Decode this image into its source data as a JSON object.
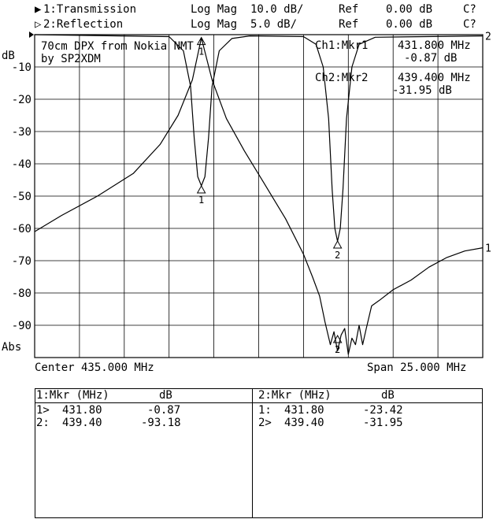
{
  "header": {
    "line1": {
      "marker": "▶",
      "label": "1:Transmission",
      "format": "Log Mag",
      "scale": "10.0 dB/",
      "ref_label": "Ref",
      "ref_value": "0.00 dB",
      "flag": "C?"
    },
    "line2": {
      "marker": "▷",
      "label": "2:Reflection",
      "format": "Log Mag",
      "scale": "5.0 dB/",
      "ref_label": "Ref",
      "ref_value": "0.00 dB",
      "flag": "C?"
    }
  },
  "annotation": {
    "line1": "70cm DPX from Nokia NMT",
    "line2": "by SP2XDM"
  },
  "marker_readouts": [
    {
      "title": "Ch1:Mkr1",
      "freq": "431.800 MHz",
      "value": "-0.87 dB"
    },
    {
      "title": "Ch2:Mkr2",
      "freq": "439.400 MHz",
      "value": "-31.95 dB"
    }
  ],
  "axis": {
    "unit": "dB",
    "mode": "Abs",
    "center": "Center 435.000 MHz",
    "span": "Span 25.000 MHz"
  },
  "chart_data": {
    "type": "line",
    "xlabel": "",
    "ylabel": "dB",
    "x_unit": "MHz",
    "xlim": [
      422.5,
      447.5
    ],
    "ylim": [
      -100,
      0
    ],
    "y_ticks": [
      -10,
      -20,
      -30,
      -40,
      -50,
      -60,
      -70,
      -80,
      -90
    ],
    "y_tick_labels": [
      "-10",
      "-20",
      "-30",
      "-40",
      "-50",
      "-60",
      "-70",
      "-80",
      "-90"
    ],
    "grid": true,
    "series": [
      {
        "name": "1",
        "trace": "Transmission",
        "scale_db_per_div": 10,
        "x": [
          422.5,
          424.0,
          426.0,
          428.0,
          429.5,
          430.5,
          431.3,
          431.8,
          432.4,
          433.2,
          434.2,
          435.3,
          436.5,
          437.5,
          438.0,
          438.4,
          438.7,
          439.0,
          439.2,
          439.4,
          439.6,
          439.8,
          440.0,
          440.2,
          440.4,
          440.6,
          440.8,
          441.0,
          441.3,
          441.8,
          442.5,
          443.5,
          444.5,
          445.5,
          446.5,
          447.5
        ],
        "y": [
          -61,
          -56,
          -50,
          -43,
          -34,
          -25,
          -14,
          -1,
          -14,
          -26,
          -36,
          -46,
          -57,
          -68,
          -75,
          -81,
          -89,
          -96,
          -92,
          -98,
          -93,
          -91,
          -99,
          -94,
          -96,
          -90,
          -96,
          -91,
          -84,
          -82,
          -79,
          -76,
          -72,
          -69,
          -67,
          -66
        ]
      },
      {
        "name": "2",
        "trace": "Reflection",
        "scale_db_per_div": 5,
        "x": [
          422.5,
          430.0,
          430.8,
          431.2,
          431.4,
          431.6,
          431.8,
          432.0,
          432.2,
          432.4,
          432.8,
          433.5,
          434.5,
          437.5,
          438.2,
          438.6,
          438.9,
          439.1,
          439.25,
          439.4,
          439.55,
          439.7,
          439.9,
          440.2,
          440.6,
          441.5,
          447.5
        ],
        "y": [
          0,
          -0.3,
          -2.5,
          -8,
          -16,
          -22,
          -23.4,
          -22,
          -16,
          -8,
          -2.5,
          -0.6,
          -0.2,
          -0.3,
          -1.5,
          -5,
          -13,
          -24,
          -30,
          -32,
          -30,
          -24,
          -13,
          -5,
          -1.5,
          -0.4,
          -0.2
        ]
      }
    ],
    "markers": [
      {
        "label": "1",
        "series": "1",
        "x": 431.8,
        "y": -0.87
      },
      {
        "label": "2",
        "series": "1",
        "x": 439.4,
        "y": -93.18
      },
      {
        "label": "1",
        "series": "2",
        "x": 431.8,
        "y": -23.42
      },
      {
        "label": "2",
        "series": "2",
        "x": 439.4,
        "y": -31.95
      }
    ]
  },
  "tables": [
    {
      "header": {
        "title": "1:Mkr (MHz)",
        "unit": "dB"
      },
      "rows": [
        {
          "id": "1>",
          "freq": "431.80",
          "value": "-0.87"
        },
        {
          "id": "2:",
          "freq": "439.40",
          "value": "-93.18"
        }
      ]
    },
    {
      "header": {
        "title": "2:Mkr (MHz)",
        "unit": "dB"
      },
      "rows": [
        {
          "id": "1:",
          "freq": "431.80",
          "value": "-23.42"
        },
        {
          "id": "2>",
          "freq": "439.40",
          "value": "-31.95"
        }
      ]
    }
  ]
}
